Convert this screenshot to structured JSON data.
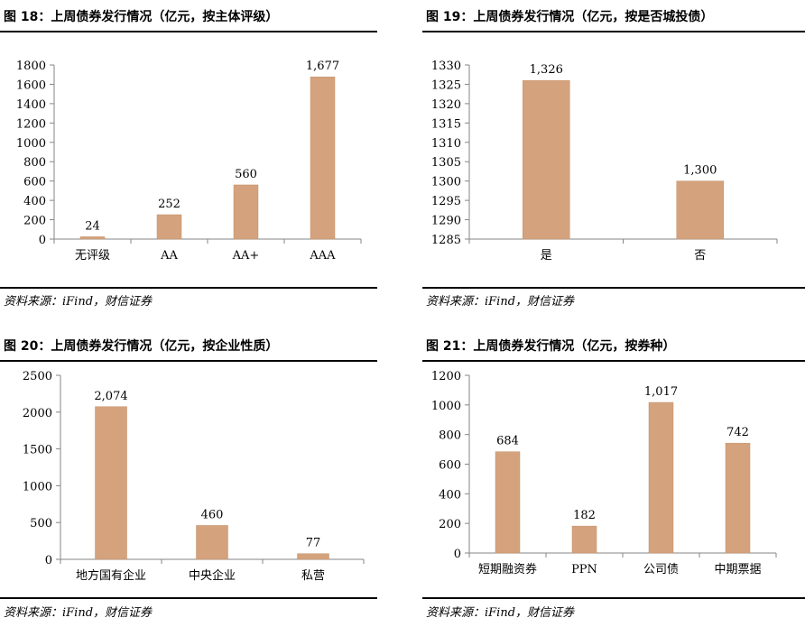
{
  "colors": {
    "bar": "#D4A27C",
    "bar_edge": "#C4916A",
    "axis": "#868686"
  },
  "chart_data": [
    {
      "type": "bar",
      "title": "图 18：上周债券发行情况（亿元，按主体评级）",
      "source": "资料来源：iFind，财信证券",
      "categories": [
        "无评级",
        "AA",
        "AA+",
        "AAA"
      ],
      "values": [
        24,
        252,
        560,
        1677
      ],
      "data_labels": [
        "24",
        "252",
        "560",
        "1,677"
      ],
      "ylim": [
        0,
        1800
      ],
      "yticks": [
        0,
        200,
        400,
        600,
        800,
        1000,
        1200,
        1400,
        1600,
        1800
      ],
      "grid": false,
      "legend": "none"
    },
    {
      "type": "bar",
      "title": "图 19：上周债券发行情况（亿元，按是否城投债）",
      "source": "资料来源：iFind，财信证券",
      "categories": [
        "是",
        "否"
      ],
      "values": [
        1326,
        1300
      ],
      "data_labels": [
        "1,326",
        "1,300"
      ],
      "ylim": [
        1285,
        1330
      ],
      "yticks": [
        1285,
        1290,
        1295,
        1300,
        1305,
        1310,
        1315,
        1320,
        1325,
        1330
      ],
      "grid": false,
      "legend": "none"
    },
    {
      "type": "bar",
      "title": "图 20：上周债券发行情况（亿元，按企业性质）",
      "source": "资料来源：iFind，财信证券",
      "categories": [
        "地方国有企业",
        "中央企业",
        "私营"
      ],
      "values": [
        2074,
        460,
        77
      ],
      "data_labels": [
        "2,074",
        "460",
        "77"
      ],
      "ylim": [
        0,
        2500
      ],
      "yticks": [
        0,
        500,
        1000,
        1500,
        2000,
        2500
      ],
      "grid": false,
      "legend": "none"
    },
    {
      "type": "bar",
      "title": "图 21：上周债券发行情况（亿元，按券种）",
      "source": "资料来源：iFind，财信证券",
      "categories": [
        "短期融资券",
        "PPN",
        "公司债",
        "中期票据"
      ],
      "values": [
        684,
        182,
        1017,
        742
      ],
      "data_labels": [
        "684",
        "182",
        "1,017",
        "742"
      ],
      "ylim": [
        0,
        1200
      ],
      "yticks": [
        0,
        200,
        400,
        600,
        800,
        1000,
        1200
      ],
      "grid": false,
      "legend": "none"
    }
  ]
}
